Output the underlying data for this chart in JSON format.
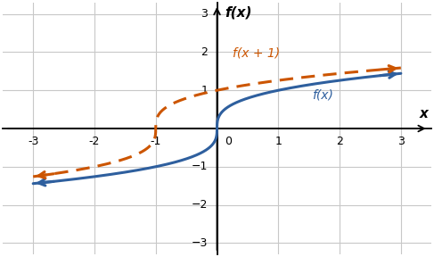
{
  "title": "f(x)",
  "xlabel": "x",
  "xlim": [
    -3.5,
    3.5
  ],
  "ylim": [
    -3.3,
    3.3
  ],
  "xticks": [
    -3,
    -2,
    -1,
    0,
    1,
    2,
    3
  ],
  "yticks": [
    -3,
    -2,
    -1,
    1,
    2,
    3
  ],
  "fx_color": "#2e5f9e",
  "fx_shift_color": "#cc5500",
  "fx_label": "f(x)",
  "fx_shift_label": "f(x + 1)",
  "background_color": "#ffffff",
  "grid_color": "#c8c8c8",
  "curve_linewidth": 2.2,
  "label_fontsize": 10,
  "tick_fontsize": 9,
  "axis_label_fontsize": 11
}
